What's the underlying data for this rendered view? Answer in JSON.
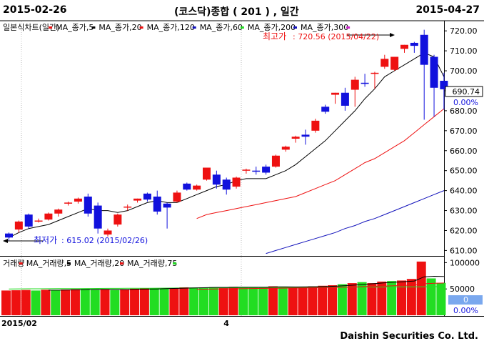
{
  "header": {
    "start_date": "2015-02-26",
    "title": "(코스닥)종합  ( 201 ) , 일간",
    "end_date": "2015-04-27"
  },
  "footer": {
    "company": "Daishin Securities Co. Ltd."
  },
  "colors": {
    "up": "#ee1111",
    "down": "#1111dd",
    "ma5": "#000000",
    "ma20": "#ee1111",
    "ma120": "#1111bb",
    "vol_up": "#ee1111",
    "vol_down": "#22dd22",
    "vol_ma5": "#000000",
    "vol_ma20": "#ee1111",
    "vol_ma75": "#22dd22"
  },
  "chart_data": {
    "type": "candlestick",
    "price_panel": {
      "legend": [
        {
          "label": "일본식차트(일간)",
          "color": "#ee1111"
        },
        {
          "label": "MA_종가,5",
          "color": "#000000"
        },
        {
          "label": "MA_종가,20",
          "color": "#ee1111"
        },
        {
          "label": "MA_종가,120",
          "color": "#1111bb"
        },
        {
          "label": "MA_종가,60",
          "color": "#22dd22"
        },
        {
          "label": "MA_종가,200",
          "color": "#1111bb"
        },
        {
          "label": "MA_종가,300",
          "color": "#cc22cc"
        }
      ],
      "y_ticks": [
        610,
        620,
        630,
        640,
        650,
        660,
        670,
        680,
        690,
        700,
        710,
        720
      ],
      "ylim": [
        608,
        724
      ],
      "last_value": "690.74",
      "change_pct": "0.00%",
      "high_annotation": {
        "label": "최고가",
        "text": ": 720.56 (2015/04/22)",
        "value": 720.56
      },
      "low_annotation": {
        "label": "최저가",
        "text": ": 615.02 (2015/02/26)",
        "value": 615.02
      },
      "candles": [
        {
          "o": 618.5,
          "h": 619.0,
          "l": 615.02,
          "c": 616.5
        },
        {
          "o": 620.5,
          "h": 625.0,
          "l": 619.0,
          "c": 624.5
        },
        {
          "o": 628.0,
          "h": 628.5,
          "l": 621.0,
          "c": 622.0
        },
        {
          "o": 624.5,
          "h": 626.0,
          "l": 624.0,
          "c": 625.0
        },
        {
          "o": 625.5,
          "h": 629.0,
          "l": 625.0,
          "c": 628.5
        },
        {
          "o": 628.5,
          "h": 631.0,
          "l": 627.0,
          "c": 630.5
        },
        {
          "o": 633.5,
          "h": 634.5,
          "l": 632.5,
          "c": 634.0
        },
        {
          "o": 634.5,
          "h": 636.5,
          "l": 633.5,
          "c": 636.0
        },
        {
          "o": 637.0,
          "h": 638.5,
          "l": 627.0,
          "c": 628.5
        },
        {
          "o": 632.5,
          "h": 634.0,
          "l": 618.5,
          "c": 621.0
        },
        {
          "o": 618.0,
          "h": 621.0,
          "l": 617.0,
          "c": 620.0
        },
        {
          "o": 623.0,
          "h": 628.5,
          "l": 622.0,
          "c": 628.0
        },
        {
          "o": 632.0,
          "h": 633.0,
          "l": 630.0,
          "c": 632.0
        },
        {
          "o": 635.0,
          "h": 636.0,
          "l": 634.0,
          "c": 636.0
        },
        {
          "o": 638.5,
          "h": 639.0,
          "l": 634.5,
          "c": 635.5
        },
        {
          "o": 637.0,
          "h": 640.0,
          "l": 628.0,
          "c": 629.5
        },
        {
          "o": 633.5,
          "h": 634.0,
          "l": 621.0,
          "c": 631.5
        },
        {
          "o": 634.5,
          "h": 640.0,
          "l": 634.0,
          "c": 639.0
        },
        {
          "o": 643.5,
          "h": 644.0,
          "l": 640.0,
          "c": 640.5
        },
        {
          "o": 640.5,
          "h": 643.0,
          "l": 640.0,
          "c": 642.5
        },
        {
          "o": 645.5,
          "h": 651.5,
          "l": 645.0,
          "c": 651.5
        },
        {
          "o": 648.0,
          "h": 650.0,
          "l": 641.0,
          "c": 643.0
        },
        {
          "o": 645.5,
          "h": 646.5,
          "l": 638.0,
          "c": 640.5
        },
        {
          "o": 642.0,
          "h": 647.0,
          "l": 641.0,
          "c": 646.5
        },
        {
          "o": 650.0,
          "h": 651.0,
          "l": 648.5,
          "c": 650.5
        },
        {
          "o": 650.0,
          "h": 652.0,
          "l": 648.0,
          "c": 649.5
        },
        {
          "o": 652.0,
          "h": 653.0,
          "l": 648.0,
          "c": 649.0
        },
        {
          "o": 652.0,
          "h": 658.0,
          "l": 651.5,
          "c": 657.5
        },
        {
          "o": 660.5,
          "h": 662.5,
          "l": 659.5,
          "c": 662.0
        },
        {
          "o": 666.0,
          "h": 667.5,
          "l": 664.0,
          "c": 667.0
        },
        {
          "o": 668.0,
          "h": 670.5,
          "l": 663.0,
          "c": 667.0
        },
        {
          "o": 670.0,
          "h": 676.0,
          "l": 669.0,
          "c": 675.0
        },
        {
          "o": 682.0,
          "h": 683.0,
          "l": 678.5,
          "c": 679.5
        },
        {
          "o": 688.0,
          "h": 689.0,
          "l": 683.5,
          "c": 689.0
        },
        {
          "o": 689.0,
          "h": 691.5,
          "l": 680.0,
          "c": 682.5
        },
        {
          "o": 690.5,
          "h": 697.0,
          "l": 682.0,
          "c": 695.5
        },
        {
          "o": 694.0,
          "h": 698.5,
          "l": 692.0,
          "c": 693.5
        },
        {
          "o": 698.5,
          "h": 699.5,
          "l": 691.0,
          "c": 699.0
        },
        {
          "o": 702.0,
          "h": 708.0,
          "l": 701.0,
          "c": 706.0
        },
        {
          "o": 700.5,
          "h": 707.0,
          "l": 700.0,
          "c": 707.0
        },
        {
          "o": 711.0,
          "h": 713.0,
          "l": 709.0,
          "c": 713.0
        },
        {
          "o": 714.0,
          "h": 714.5,
          "l": 709.0,
          "c": 712.5
        },
        {
          "o": 718.0,
          "h": 720.56,
          "l": 675.5,
          "c": 703.0
        },
        {
          "o": 707.0,
          "h": 708.0,
          "l": 677.0,
          "c": 691.5
        },
        {
          "o": 695.0,
          "h": 699.0,
          "l": 680.5,
          "c": 690.74
        }
      ],
      "ma5": [
        616.5,
        619,
        621,
        622,
        623,
        625,
        627,
        629,
        631,
        630,
        630,
        629,
        630,
        632,
        634,
        635,
        634,
        634,
        636,
        638,
        640,
        642,
        643,
        645,
        646,
        646,
        646,
        648,
        650,
        653,
        657,
        661,
        665,
        670,
        675,
        680,
        686,
        691,
        697,
        700,
        703,
        706,
        709,
        707,
        697
      ],
      "ma20": [
        null,
        null,
        null,
        null,
        null,
        null,
        null,
        null,
        null,
        null,
        null,
        null,
        null,
        null,
        null,
        null,
        null,
        null,
        null,
        626,
        628,
        629,
        630,
        631,
        632,
        633,
        634,
        635,
        636,
        637,
        639,
        641,
        643,
        645,
        648,
        651,
        654,
        656,
        659,
        662,
        665,
        669,
        673,
        677,
        681
      ],
      "ma120": [
        null,
        null,
        null,
        null,
        null,
        null,
        null,
        null,
        null,
        null,
        null,
        null,
        null,
        null,
        null,
        null,
        null,
        null,
        null,
        null,
        null,
        null,
        null,
        null,
        null,
        null,
        608.5,
        610,
        611.5,
        613,
        614.5,
        616,
        617.5,
        619,
        621,
        622.5,
        624.5,
        626,
        628,
        630,
        632,
        634,
        636,
        638,
        640
      ]
    },
    "volume_panel": {
      "legend": [
        {
          "label": "거래량",
          "color": "#ee1111"
        },
        {
          "label": "MA_거래량,5",
          "color": "#000000"
        },
        {
          "label": "MA_거래량,20",
          "color": "#ee1111"
        },
        {
          "label": "MA_거래량,75",
          "color": "#22dd22"
        }
      ],
      "y_ticks": [
        50000,
        100000
      ],
      "ylim": [
        0,
        110000
      ],
      "last_value": "0",
      "change_pct": "0.00%",
      "volumes": [
        47000,
        47500,
        48000,
        47000,
        48500,
        48000,
        49000,
        49500,
        50000,
        48500,
        49000,
        48000,
        49000,
        50500,
        51000,
        51500,
        50500,
        52000,
        53000,
        52500,
        53000,
        53500,
        53000,
        54000,
        53500,
        52500,
        53500,
        55000,
        53500,
        53000,
        54000,
        55000,
        56000,
        57000,
        59000,
        61000,
        63000,
        61000,
        64000,
        65000,
        66000,
        69000,
        102000,
        70000,
        61500
      ],
      "up_down": [
        "u",
        "u",
        "u",
        "d",
        "u",
        "d",
        "u",
        "u",
        "d",
        "d",
        "u",
        "d",
        "u",
        "u",
        "u",
        "d",
        "d",
        "u",
        "u",
        "d",
        "d",
        "d",
        "u",
        "u",
        "d",
        "d",
        "d",
        "u",
        "d",
        "u",
        "u",
        "u",
        "u",
        "u",
        "d",
        "u",
        "d",
        "u",
        "u",
        "d",
        "u",
        "u",
        "u",
        "d",
        "d"
      ],
      "vol_ma5": [
        null,
        null,
        null,
        null,
        47600,
        47700,
        48100,
        48400,
        49000,
        49100,
        49200,
        49000,
        48900,
        49600,
        49700,
        50000,
        50500,
        51000,
        51600,
        52000,
        52400,
        53000,
        53000,
        53200,
        53400,
        53300,
        53300,
        54000,
        53900,
        53800,
        53900,
        54200,
        54400,
        55200,
        56200,
        57500,
        59000,
        60200,
        61600,
        62800,
        63800,
        65000,
        73000,
        74000,
        73700
      ],
      "vol_ma20": [
        null,
        null,
        null,
        null,
        null,
        null,
        null,
        null,
        null,
        null,
        null,
        null,
        null,
        null,
        null,
        null,
        null,
        null,
        null,
        49300,
        49600,
        49900,
        50100,
        50400,
        50700,
        50900,
        51100,
        51400,
        51600,
        51800,
        52000,
        52300,
        52600,
        52900,
        53300,
        53800,
        54400,
        54800,
        55400,
        56000,
        56700,
        57400,
        59800,
        60700,
        61200
      ],
      "vol_ma75": [
        50000,
        50100,
        50200,
        50300,
        50400,
        50500,
        50600,
        50700,
        50800,
        50900,
        51000,
        51100,
        51200,
        51300,
        51400,
        51500,
        51600,
        51700,
        51800,
        51900,
        52000,
        52100,
        52200,
        52300,
        52400,
        52500,
        52600,
        52700,
        52800,
        52900,
        53000,
        53100,
        53200,
        53300,
        53400,
        53500,
        53600,
        53700,
        53800,
        53900,
        54000,
        54100,
        54200,
        54300,
        54400
      ]
    },
    "x_labels": [
      {
        "index": 0,
        "label": "2015/02"
      },
      {
        "index": 22,
        "label": "4"
      }
    ]
  }
}
